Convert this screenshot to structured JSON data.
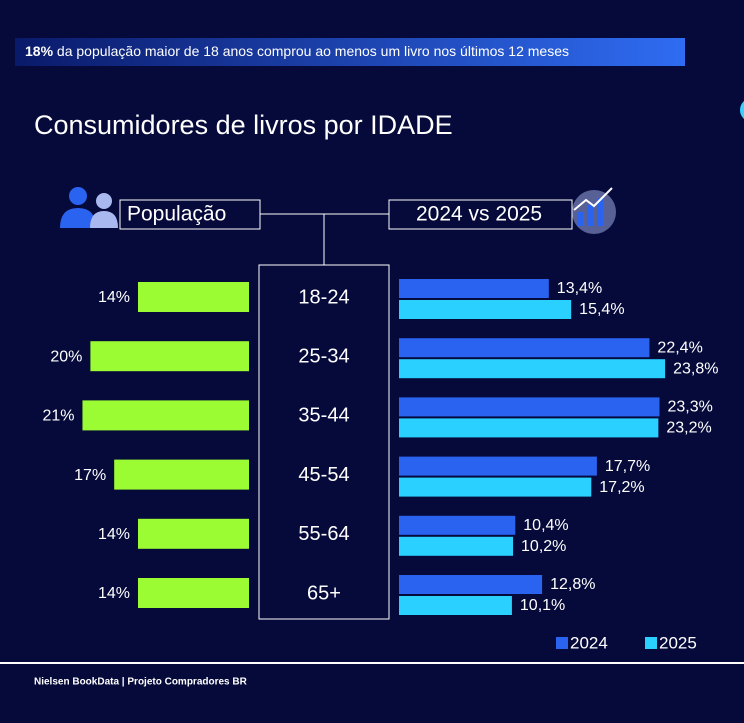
{
  "banner": {
    "highlight": "18%",
    "text": "da população maior de 18 anos comprou ao menos um livro nos últimos 12 meses"
  },
  "title": "Consumidores de livros por IDADE",
  "footer": "Nielsen BookData | Projeto Compradores BR",
  "chart_data": [
    {
      "type": "bar",
      "title": "População",
      "categories": [
        "18-24",
        "25-34",
        "35-44",
        "45-54",
        "55-64",
        "65+"
      ],
      "values": [
        14,
        20,
        21,
        17,
        14,
        14
      ],
      "value_labels": [
        "14%",
        "20%",
        "21%",
        "17%",
        "14%",
        "14%"
      ],
      "color": "#9cfc34"
    },
    {
      "type": "grouped-bar",
      "title": "2024 vs 2025",
      "legend": "bottom-right",
      "series": [
        {
          "name": "2024",
          "color": "#2a63f0",
          "values": [
            13.4,
            22.4,
            23.3,
            17.7,
            10.4,
            12.8
          ],
          "value_labels": [
            "13,4%",
            "22,4%",
            "23,3%",
            "17,7%",
            "10,4%",
            "12,8%"
          ]
        },
        {
          "name": "2025",
          "color": "#2ad0ff",
          "values": [
            15.4,
            23.8,
            23.2,
            17.2,
            10.2,
            10.1
          ],
          "value_labels": [
            "15,4%",
            "23,8%",
            "23,2%",
            "17,2%",
            "10,2%",
            "10,1%"
          ]
        }
      ]
    }
  ]
}
